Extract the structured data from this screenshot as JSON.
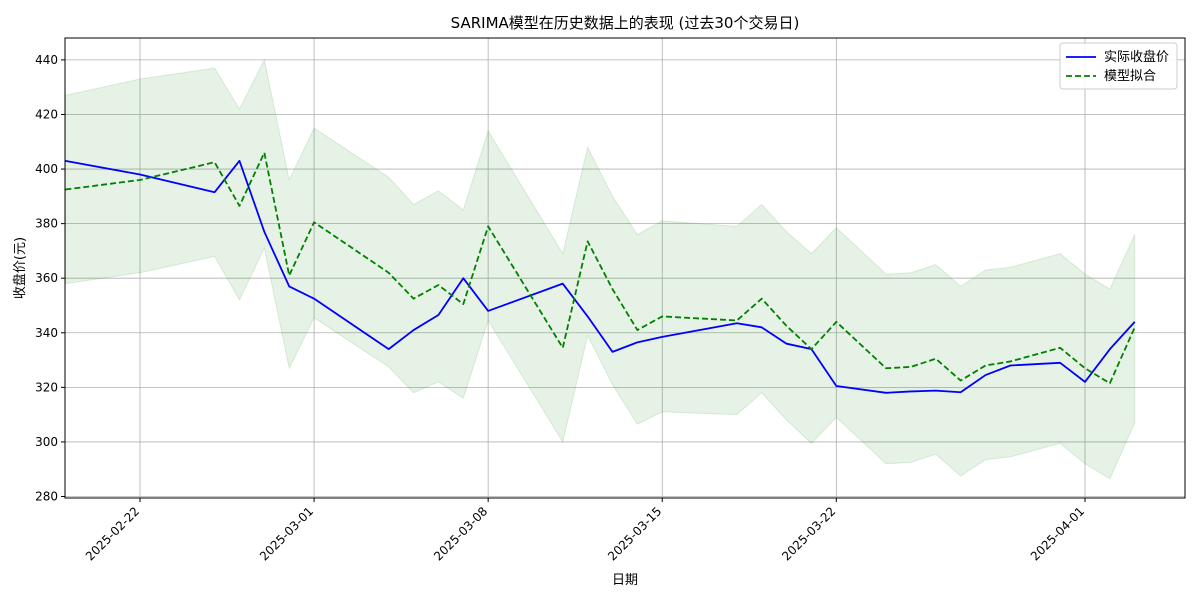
{
  "chart_data": {
    "type": "line",
    "title": "SARIMA模型在历史数据上的表现 (过去30个交易日)",
    "xlabel": "日期",
    "ylabel": "收盘价(元)",
    "ylim": [
      279,
      448
    ],
    "y_ticks": [
      280,
      300,
      320,
      340,
      360,
      380,
      400,
      420,
      440
    ],
    "x_ticks": [
      "2025-02-22",
      "2025-03-01",
      "2025-03-08",
      "2025-03-15",
      "2025-03-22",
      "2025-04-01"
    ],
    "grid": true,
    "legend_position": "top-right",
    "x": [
      "2025-02-19",
      "2025-02-22",
      "2025-02-22",
      "2025-02-25",
      "2025-02-26",
      "2025-02-27",
      "2025-02-28",
      "2025-03-01",
      "2025-03-04",
      "2025-03-05",
      "2025-03-06",
      "2025-03-07",
      "2025-03-08",
      "2025-03-11",
      "2025-03-12",
      "2025-03-13",
      "2025-03-14",
      "2025-03-15",
      "2025-03-18",
      "2025-03-19",
      "2025-03-20",
      "2025-03-21",
      "2025-03-22",
      "2025-03-24",
      "2025-03-25",
      "2025-03-26",
      "2025-03-27",
      "2025-03-28",
      "2025-03-29",
      "2025-03-31",
      "2025-04-01",
      "2025-04-02",
      "2025-04-03"
    ],
    "series": [
      {
        "name": "实际收盘价",
        "color": "#0000ff",
        "dash": "solid",
        "values": [
          403,
          398,
          398,
          391.5,
          403,
          377,
          357,
          352.5,
          334,
          341,
          346.5,
          360,
          348,
          358,
          346,
          333,
          336.5,
          338.5,
          343.5,
          342,
          336,
          334,
          320.5,
          318,
          318.5,
          318.8,
          318.2,
          324.5,
          328,
          329,
          322,
          334,
          344
        ]
      },
      {
        "name": "模型拟合",
        "color": "#008000",
        "dash": "dashed",
        "values": [
          392.5,
          396,
          396,
          402.5,
          386.5,
          406,
          361,
          380.5,
          362,
          352.5,
          357.5,
          350.5,
          379,
          334.5,
          373.5,
          356,
          341,
          346,
          344.5,
          352.5,
          342.5,
          334,
          344,
          327,
          327.5,
          330.5,
          322.5,
          328,
          329.5,
          334.5,
          327,
          321.5,
          342
        ]
      }
    ],
    "confidence_band": {
      "color": "#008000",
      "upper": [
        427,
        433,
        433,
        437,
        422,
        440,
        396,
        415,
        397,
        387,
        392,
        385,
        414,
        369,
        408,
        390,
        376,
        381,
        379,
        387,
        377,
        369,
        378.5,
        361.5,
        362,
        365,
        357,
        363,
        364,
        369,
        361.5,
        356,
        376
      ],
      "lower": [
        358,
        362,
        362,
        368,
        352,
        371,
        327,
        345.5,
        327.5,
        318,
        322,
        316,
        344.5,
        300,
        339,
        321,
        306.5,
        311,
        310,
        318,
        308,
        299.5,
        309,
        292,
        292.5,
        295.5,
        287.5,
        293.5,
        294.5,
        299.5,
        292,
        286.5,
        307
      ]
    }
  }
}
